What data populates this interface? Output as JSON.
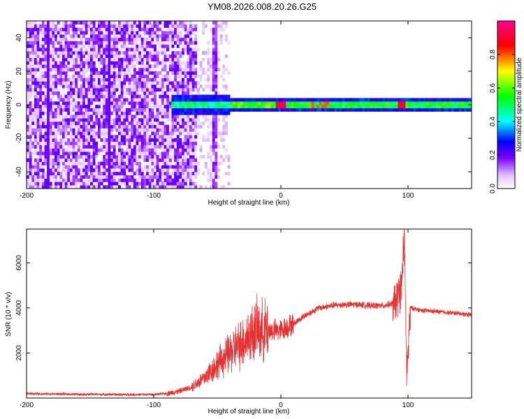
{
  "title": "YM08.2026.008.20.26.G25",
  "chart_data": [
    {
      "type": "heatmap",
      "xlabel": "Height of straight line (km)",
      "ylabel": "Frequency (Hz)",
      "xlim": [
        -200,
        150
      ],
      "ylim": [
        -50,
        50
      ],
      "x_ticks": [
        -200,
        -100,
        0,
        100
      ],
      "y_ticks": [
        -40,
        -20,
        0,
        20,
        40
      ],
      "colorbar": {
        "label": "Normalized spectral amplitude",
        "range": [
          0.0,
          1.0
        ],
        "ticks": [
          "0.0",
          "0.2",
          "0.4",
          "0.6",
          "0.8"
        ],
        "colors": [
          "#ffffff",
          "#d8b0ff",
          "#8000ff",
          "#0000ff",
          "#00ffff",
          "#00ff00",
          "#ffff00",
          "#ff0000",
          "#ff0080"
        ]
      },
      "features": [
        {
          "x_range": [
            -200,
            -65
          ],
          "freq_range": [
            -50,
            50
          ],
          "amplitude": 0.2,
          "description_level": "broadband-noise"
        },
        {
          "x_range": [
            -80,
            -40
          ],
          "freq_range": [
            -6,
            6
          ],
          "amplitude": 0.45
        },
        {
          "x_range": [
            -40,
            0
          ],
          "freq_range": [
            -3,
            3
          ],
          "amplitude": 0.6
        },
        {
          "x_range": [
            0,
            150
          ],
          "freq_range": [
            -2,
            2
          ],
          "amplitude": 0.55
        },
        {
          "x": 0,
          "freq": 0,
          "amplitude": 0.95
        },
        {
          "x": 95,
          "freq": 1,
          "amplitude": 0.9
        }
      ]
    },
    {
      "type": "line",
      "xlabel": "Height of straight line (km)",
      "ylabel": "SNR (10 * v/v)",
      "xlim": [
        -200,
        150
      ],
      "ylim": [
        0,
        7500
      ],
      "x_ticks": [
        -200,
        -100,
        0,
        100
      ],
      "y_ticks": [
        2000,
        4000,
        6000
      ],
      "color": "#e83030",
      "series": [
        {
          "x": [
            -200,
            -180,
            -160,
            -140,
            -120,
            -100,
            -90,
            -80,
            -70,
            -60,
            -50,
            -40,
            -30,
            -20,
            -10,
            0,
            10,
            20,
            30,
            40,
            50,
            60,
            70,
            80,
            90,
            95,
            97,
            99,
            102,
            110,
            120,
            130,
            140,
            150
          ],
          "y": [
            200,
            180,
            170,
            160,
            150,
            160,
            200,
            300,
            500,
            900,
            1500,
            2000,
            2500,
            3000,
            3000,
            3000,
            3300,
            3700,
            4000,
            4100,
            4150,
            4150,
            4100,
            4100,
            4200,
            5000,
            7300,
            1000,
            4000,
            3900,
            3850,
            3800,
            3750,
            3700
          ]
        }
      ]
    }
  ]
}
